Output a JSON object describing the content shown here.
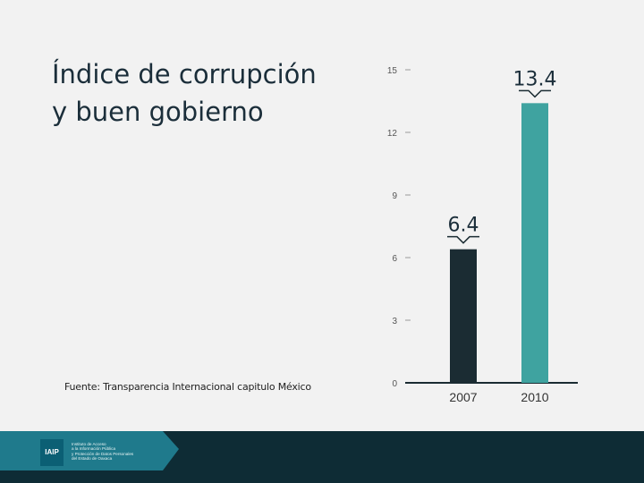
{
  "title_lines": [
    "Índice de corrupción",
    "y buen gobierno"
  ],
  "source": "Fuente: Transparencia Internacional capitulo  México",
  "chart_data": {
    "type": "bar",
    "title": "Índice de corrupción y buen gobierno",
    "categories": [
      "2007",
      "2010"
    ],
    "values": [
      6.4,
      13.4
    ],
    "value_labels": [
      "6.4",
      "13.4"
    ],
    "y_ticks": [
      0,
      3,
      6,
      9,
      12,
      15
    ],
    "ylim": [
      0,
      15
    ],
    "xlabel": "",
    "ylabel": "",
    "colors": [
      "#1b2c33",
      "#3fa3a0"
    ],
    "grid": false
  },
  "footer": {
    "logo_label": "IAIP",
    "logo_lines": [
      "Instituto de Acceso",
      "a la Información Pública",
      "y Protección de Datos Personales",
      "del Estado de Oaxaca"
    ],
    "bar_color": "#0e2c35",
    "accent_color": "#1f7a8c"
  }
}
